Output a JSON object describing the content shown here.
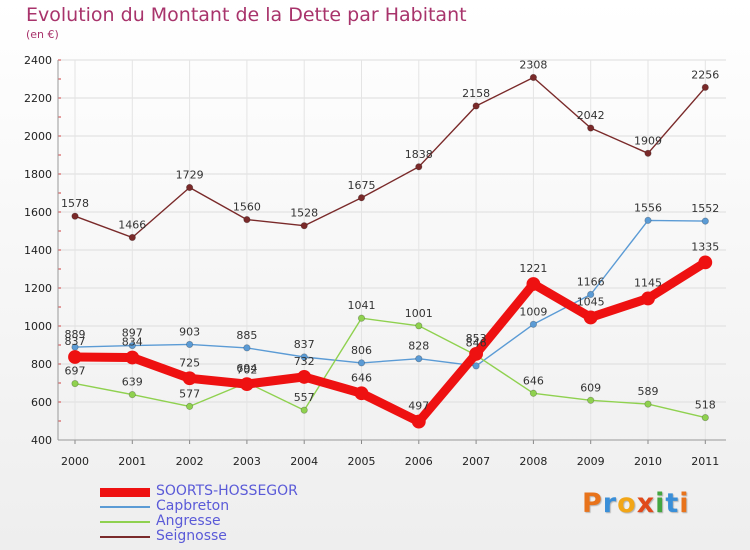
{
  "title": "Evolution du Montant de la Dette par Habitant",
  "subtitle": "(en €)",
  "logo_text": "Proxiti",
  "logo_colors": [
    "#e8731b",
    "#3a8fd8",
    "#f2a617",
    "#e04a1b",
    "#44a640",
    "#3a8fd8",
    "#e8731b"
  ],
  "chart_data": {
    "type": "line",
    "title": "Evolution du Montant de la Dette par Habitant",
    "subtitle": "(en €)",
    "xlabel": "",
    "ylabel": "",
    "x": [
      "2000",
      "2001",
      "2002",
      "2003",
      "2004",
      "2005",
      "2006",
      "2007",
      "2008",
      "2009",
      "2010",
      "2011"
    ],
    "ylim": [
      400,
      2400
    ],
    "yticks": [
      "400",
      "600",
      "800",
      "1000",
      "1200",
      "1400",
      "1600",
      "1800",
      "2000",
      "2200",
      "2400"
    ],
    "grid": true,
    "legend_position": "bottom-left",
    "series": [
      {
        "name": "SOORTS-HOSSEGOR",
        "color": "#ee1111",
        "emphasis": true,
        "values": [
          837,
          834,
          725,
          694,
          732,
          646,
          497,
          853,
          1221,
          1045,
          1145,
          1335
        ],
        "labels": [
          "837",
          "834",
          "725",
          "694",
          "732",
          "646",
          "497",
          "853",
          "1221",
          "1045",
          "1145",
          "1335"
        ]
      },
      {
        "name": "Capbreton",
        "color": "#5b9bd5",
        "emphasis": false,
        "values": [
          889,
          897,
          903,
          885,
          837,
          806,
          828,
          790,
          1009,
          1166,
          1556,
          1552
        ],
        "labels": [
          "889",
          "897",
          "903",
          "885",
          "837",
          "806",
          "828",
          "",
          "1009",
          "1166",
          "1556",
          "1552"
        ]
      },
      {
        "name": "Angresse",
        "color": "#8fd14f",
        "emphasis": false,
        "values": [
          697,
          639,
          577,
          702,
          557,
          1041,
          1001,
          846,
          646,
          609,
          589,
          518
        ],
        "labels": [
          "697",
          "639",
          "577",
          "702",
          "557",
          "1041",
          "1001",
          "846",
          "646",
          "609",
          "589",
          "518"
        ]
      },
      {
        "name": "Seignosse",
        "color": "#7a2a2a",
        "emphasis": false,
        "values": [
          1578,
          1466,
          1729,
          1560,
          1528,
          1675,
          1838,
          2158,
          2308,
          2042,
          1909,
          2256
        ],
        "labels": [
          "1578",
          "1466",
          "1729",
          "1560",
          "1528",
          "1675",
          "1838",
          "2158",
          "2308",
          "2042",
          "1909",
          "2256"
        ]
      }
    ]
  }
}
